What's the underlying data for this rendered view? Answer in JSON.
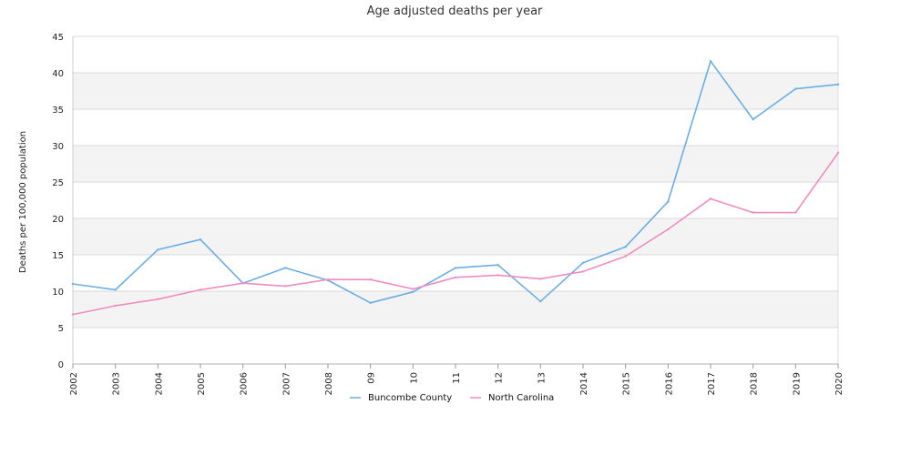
{
  "chart_data": {
    "type": "line",
    "title": "Age adjusted deaths per year",
    "xlabel": "",
    "ylabel": "Deaths per 100,000 population",
    "ylim": [
      0,
      45
    ],
    "yticks": [
      0,
      5,
      10,
      15,
      20,
      25,
      30,
      35,
      40,
      45
    ],
    "categories": [
      "2002",
      "2003",
      "2004",
      "2005",
      "2006",
      "2007",
      "2008",
      "09",
      "10",
      "11",
      "12",
      "13",
      "2014",
      "2015",
      "2016",
      "2017",
      "2018",
      "2019",
      "2020"
    ],
    "series": [
      {
        "name": "Buncombe County",
        "color": "#6aaee8",
        "values": [
          11.0,
          10.2,
          15.7,
          17.1,
          11.1,
          13.2,
          11.5,
          8.4,
          9.9,
          13.2,
          13.6,
          8.6,
          13.9,
          16.1,
          22.3,
          41.6,
          33.6,
          37.8,
          38.4
        ]
      },
      {
        "name": "North Carolina",
        "color": "#f08cbf",
        "values": [
          6.8,
          8.0,
          8.9,
          10.2,
          11.1,
          10.7,
          11.6,
          11.6,
          10.3,
          11.9,
          12.2,
          11.7,
          12.7,
          14.8,
          18.5,
          22.7,
          20.8,
          20.8,
          29.0
        ]
      }
    ],
    "grid": true,
    "legend": "bottom"
  }
}
